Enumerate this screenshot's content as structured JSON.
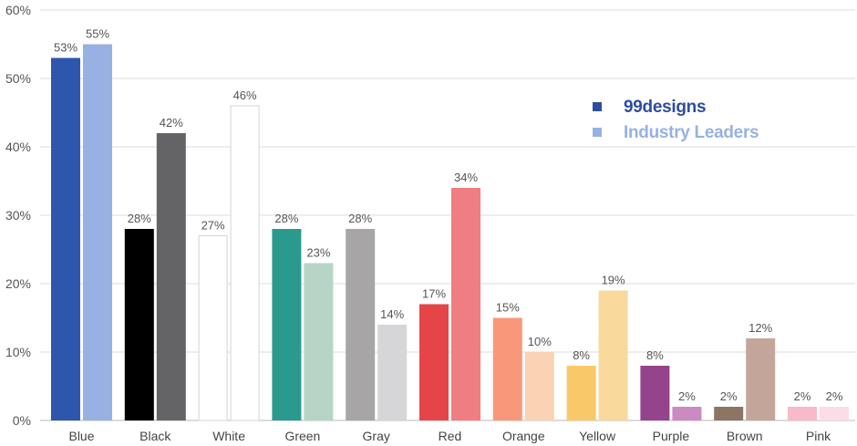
{
  "chart_data": {
    "type": "bar",
    "categories": [
      "Blue",
      "Black",
      "White",
      "Green",
      "Gray",
      "Red",
      "Orange",
      "Yellow",
      "Purple",
      "Brown",
      "Pink"
    ],
    "series": [
      {
        "name": "99designs",
        "values": [
          53,
          28,
          27,
          28,
          28,
          17,
          15,
          8,
          8,
          2,
          2
        ],
        "labels": [
          "53%",
          "28%",
          "27%",
          "28%",
          "28%",
          "17%",
          "15%",
          "8%",
          "8%",
          "2%",
          "2%"
        ],
        "colors": [
          "#2e56ad",
          "#000000",
          "#ffffff",
          "#2a9a8e",
          "#a7a5a6",
          "#e64548",
          "#f9977a",
          "#f9c969",
          "#94448d",
          "#8c7564",
          "#f8b9c9"
        ]
      },
      {
        "name": "Industry Leaders",
        "values": [
          55,
          42,
          46,
          23,
          14,
          34,
          10,
          19,
          2,
          12,
          2
        ],
        "labels": [
          "55%",
          "42%",
          "46%",
          "23%",
          "14%",
          "34%",
          "10%",
          "19%",
          "2%",
          "12%",
          "2%"
        ],
        "colors": [
          "#98b1e3",
          "#646466",
          "#ffffff",
          "#b7d5c6",
          "#d6d5d7",
          "#ef7d81",
          "#fbd2b3",
          "#f9d99c",
          "#cb8bc0",
          "#c4a59a",
          "#fbdde6"
        ]
      }
    ],
    "ylim": [
      0,
      60
    ],
    "yticks": [
      "0%",
      "10%",
      "20%",
      "30%",
      "40%",
      "50%",
      "60%"
    ],
    "ytick_values": [
      0,
      10,
      20,
      30,
      40,
      50,
      60
    ],
    "grid": true,
    "legend_position": "top-right",
    "legend": [
      {
        "name": "99designs",
        "color": "#2e4da0"
      },
      {
        "name": "Industry Leaders",
        "color": "#98b1e3"
      }
    ],
    "white_bar_outline": "#d5d2dc",
    "grid_color": "#dddddd",
    "axis_color": "#bbbbbb"
  }
}
